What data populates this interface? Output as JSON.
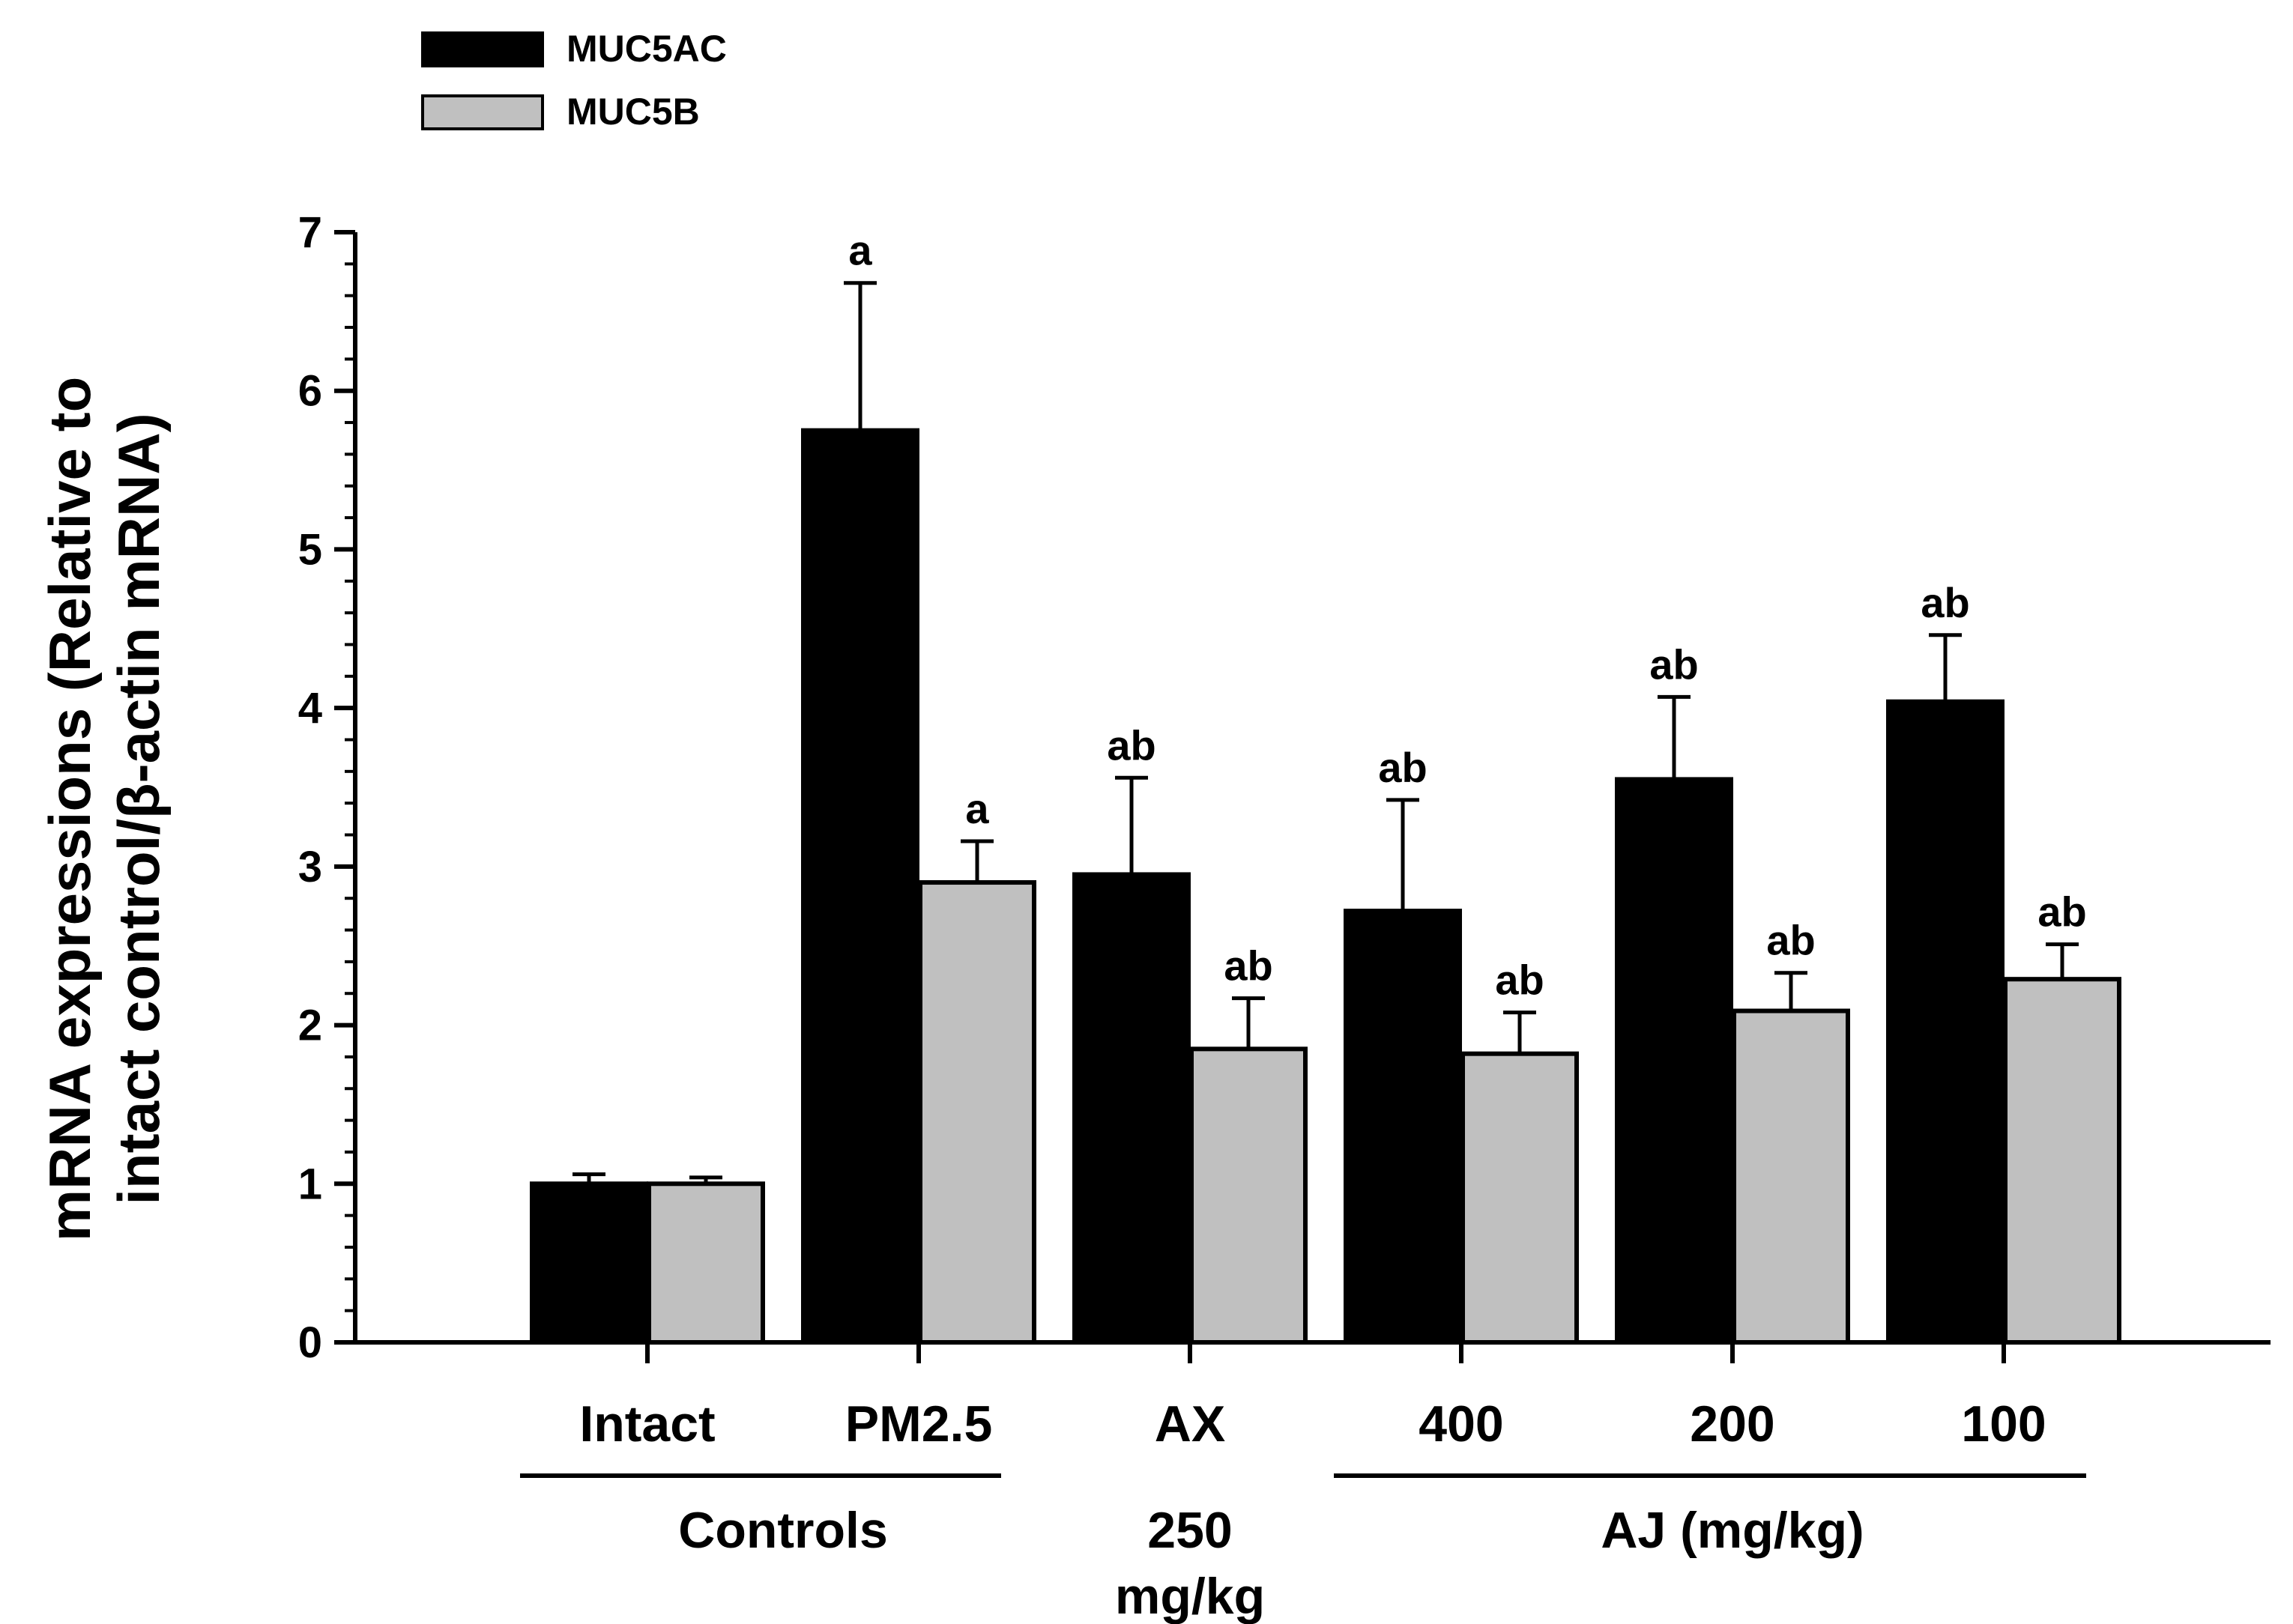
{
  "chart_data": {
    "type": "bar",
    "title": "",
    "ylabel": {
      "line1": "mRNA expressions (Relative to",
      "line2": "intact control/β-actin mRNA)"
    },
    "xlabel": "",
    "ylim": [
      0,
      7
    ],
    "yticks": [
      0,
      1,
      2,
      3,
      4,
      5,
      6,
      7
    ],
    "minor_ticks_per_major": 5,
    "grid": false,
    "legend_position": "top-left",
    "categories": [
      "Intact",
      "PM2.5",
      "AX",
      "400",
      "200",
      "100"
    ],
    "series": [
      {
        "name": "MUC5AC",
        "color": "#000000",
        "values": [
          1.0,
          5.75,
          2.95,
          2.72,
          3.55,
          4.04
        ],
        "errors": [
          0.06,
          0.93,
          0.61,
          0.7,
          0.52,
          0.42
        ],
        "significance": [
          "",
          "a",
          "ab",
          "ab",
          "ab",
          "ab"
        ]
      },
      {
        "name": "MUC5B",
        "color": "#c0c0c0",
        "values": [
          1.0,
          2.9,
          1.85,
          1.82,
          2.09,
          2.29
        ],
        "errors": [
          0.04,
          0.26,
          0.32,
          0.26,
          0.24,
          0.22
        ],
        "significance": [
          "",
          "a",
          "ab",
          "ab",
          "ab",
          "ab"
        ]
      }
    ],
    "group_labels": [
      {
        "text": "Controls",
        "from_category": 0,
        "to_category": 1,
        "underline": true
      },
      {
        "text": "250\nmg/kg",
        "from_category": 2,
        "to_category": 2,
        "underline": false
      },
      {
        "text": "AJ (mg/kg)",
        "from_category": 3,
        "to_category": 5,
        "underline": true
      }
    ]
  }
}
